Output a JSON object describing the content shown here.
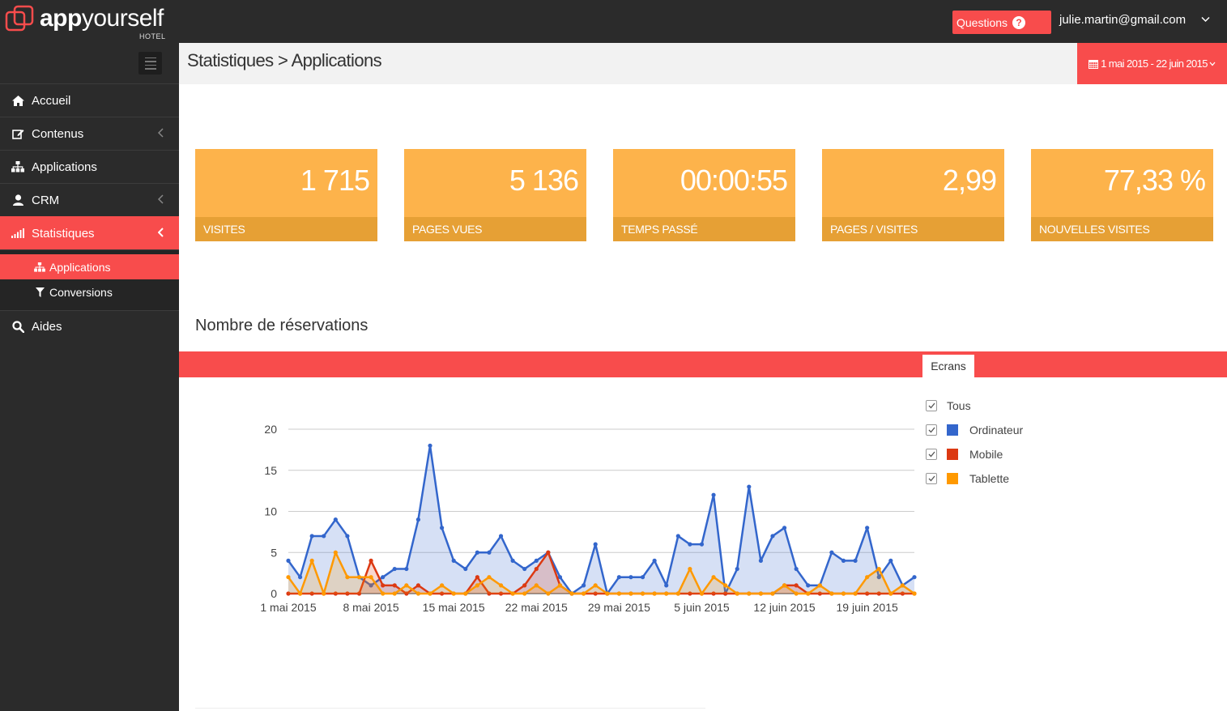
{
  "brand": {
    "name_part1": "app",
    "name_part2": "yourself",
    "sub": "HOTEL"
  },
  "topbar": {
    "questions_label": "Questions",
    "user_email": "julie.martin@gmail.com"
  },
  "page": {
    "breadcrumb": "Statistiques > Applications",
    "date_range": "1 mai 2015 - 22 juin 2015"
  },
  "sidebar": {
    "items": [
      {
        "label": "Accueil",
        "icon": "home-icon"
      },
      {
        "label": "Contenus",
        "icon": "edit-icon"
      },
      {
        "label": "Applications",
        "icon": "sitemap-icon"
      },
      {
        "label": "CRM",
        "icon": "user-icon"
      },
      {
        "label": "Statistiques",
        "icon": "bar-chart-icon"
      },
      {
        "label": "Aides",
        "icon": "search-icon"
      }
    ],
    "subitems": [
      {
        "label": "Applications",
        "icon": "sitemap-icon"
      },
      {
        "label": "Conversions",
        "icon": "filter-icon"
      }
    ]
  },
  "stats": [
    {
      "value": "1 715",
      "label": "VISITES"
    },
    {
      "value": "5 136",
      "label": "PAGES VUES"
    },
    {
      "value": "00:00:55",
      "label": "TEMPS PASSÉ"
    },
    {
      "value": "2,99",
      "label": "PAGES / VISITES"
    },
    {
      "value": "77,33 %",
      "label": "NOUVELLES VISITES"
    }
  ],
  "section": {
    "title": "Nombre de réservations",
    "tab": "Ecrans"
  },
  "legend": [
    {
      "label": "Tous",
      "color": ""
    },
    {
      "label": "Ordinateur",
      "color": "#3366cc"
    },
    {
      "label": "Mobile",
      "color": "#dc3912"
    },
    {
      "label": "Tablette",
      "color": "#ff9900"
    }
  ],
  "chart_data": {
    "type": "area",
    "x_tick_labels": [
      "1 mai 2015",
      "8 mai 2015",
      "15 mai 2015",
      "22 mai 2015",
      "29 mai 2015",
      "5 juin 2015",
      "12 juin 2015",
      "19 juin 2015"
    ],
    "y_ticks": [
      0,
      5,
      10,
      15,
      20
    ],
    "ylim": [
      0,
      20
    ],
    "x_start": "2015-05-01",
    "grid": true,
    "legend_position": "right",
    "series": [
      {
        "name": "Ordinateur",
        "color": "#3366cc",
        "values": [
          4,
          2,
          7,
          7,
          9,
          7,
          2,
          1,
          2,
          3,
          3,
          9,
          18,
          8,
          4,
          3,
          5,
          5,
          7,
          4,
          3,
          4,
          5,
          2,
          0,
          1,
          6,
          0,
          2,
          2,
          2,
          4,
          1,
          7,
          6,
          6,
          12,
          0,
          3,
          13,
          4,
          7,
          8,
          3,
          1,
          1,
          5,
          4,
          4,
          8,
          2,
          4,
          1,
          2
        ]
      },
      {
        "name": "Mobile",
        "color": "#dc3912",
        "values": [
          0,
          0,
          0,
          0,
          0,
          0,
          0,
          4,
          1,
          1,
          0,
          1,
          0,
          0,
          0,
          0,
          2,
          0,
          0,
          0,
          1,
          3,
          5,
          1,
          0,
          0,
          0,
          0,
          0,
          0,
          0,
          0,
          0,
          0,
          0,
          0,
          0,
          0,
          0,
          0,
          0,
          0,
          1,
          1,
          0,
          0,
          0,
          0,
          0,
          0,
          0,
          0,
          0,
          0
        ]
      },
      {
        "name": "Tablette",
        "color": "#ff9900",
        "values": [
          2,
          0,
          4,
          0,
          5,
          2,
          2,
          2,
          0,
          0,
          1,
          0,
          0,
          1,
          0,
          0,
          1,
          2,
          1,
          0,
          0,
          1,
          0,
          1,
          0,
          0,
          1,
          0,
          0,
          0,
          0,
          0,
          0,
          0,
          3,
          0,
          2,
          1,
          0,
          0,
          0,
          0,
          1,
          0,
          0,
          1,
          0,
          0,
          0,
          2,
          3,
          0,
          1,
          0
        ]
      }
    ]
  }
}
